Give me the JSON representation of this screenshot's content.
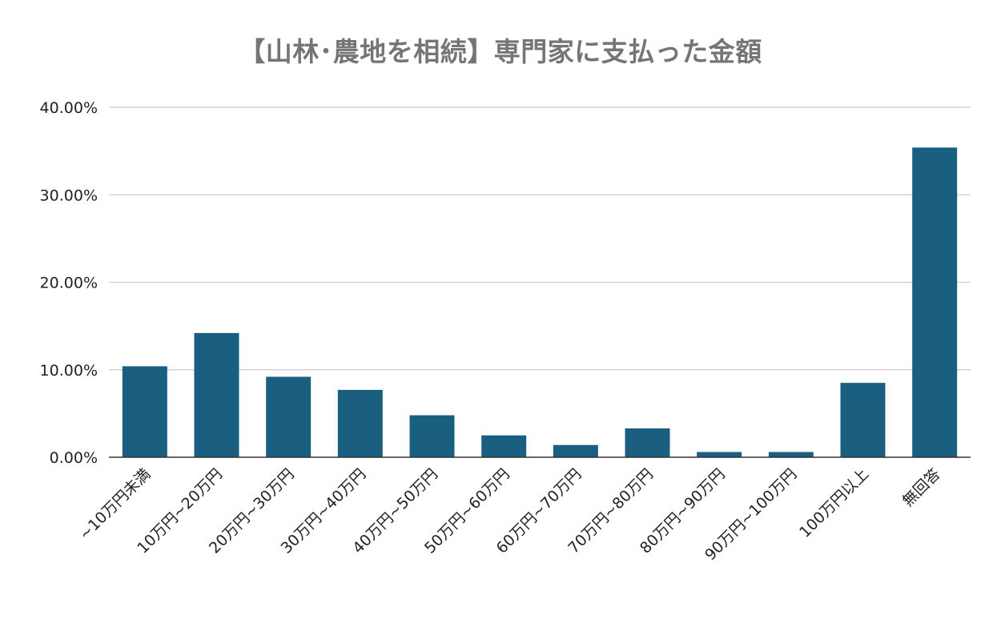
{
  "chart_data": {
    "type": "bar",
    "title": "【山林･農地を相続】専門家に支払った金額",
    "xlabel": "",
    "ylabel": "",
    "ylim": [
      0,
      40
    ],
    "y_ticks": [
      0,
      10,
      20,
      30,
      40
    ],
    "y_tick_labels": [
      "0.00%",
      "10.00%",
      "20.00%",
      "30.00%",
      "40.00%"
    ],
    "grid": true,
    "legend": "none",
    "bar_color": "#1a5e80",
    "categories": [
      "~10万円未満",
      "10万円~20万円",
      "20万円~30万円",
      "30万円~40万円",
      "40万円~50万円",
      "50万円~60万円",
      "60万円~70万円",
      "70万円~80万円",
      "80万円~90万円",
      "90万円~100万円",
      "100万円以上",
      "無回答"
    ],
    "values": [
      10.4,
      14.2,
      9.2,
      7.7,
      4.8,
      2.5,
      1.4,
      3.3,
      0.6,
      0.6,
      8.5,
      35.4
    ]
  }
}
